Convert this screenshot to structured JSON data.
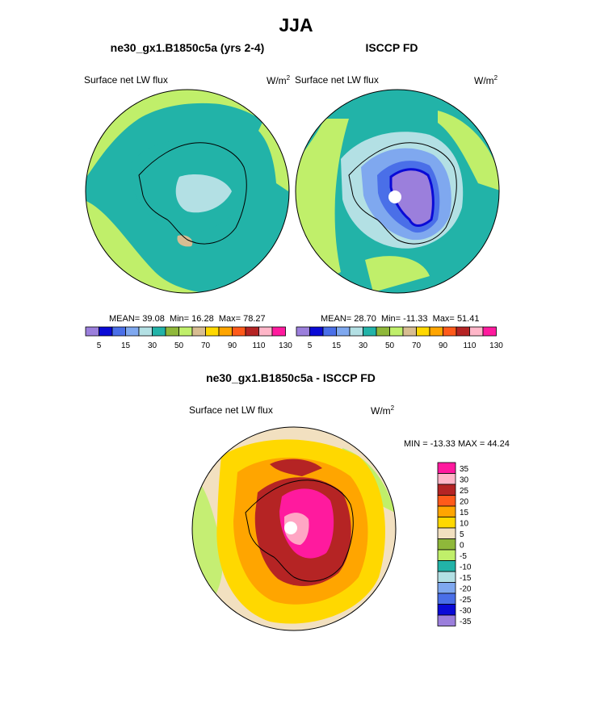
{
  "figure": {
    "title": "JJA"
  },
  "colors": {
    "levels_main": [
      "#9b7fdc",
      "#0a0ad6",
      "#4a6fe8",
      "#7fa8ef",
      "#b3e0e4",
      "#22b3a8",
      "#8fb83a",
      "#c0ef6a",
      "#d8bd92",
      "#ffd800",
      "#ffa500",
      "#ff5a1a",
      "#b52424",
      "#ffb6c8",
      "#ff1a9e"
    ],
    "levels_diff": [
      "#ff1a9e",
      "#ffb6c8",
      "#b52424",
      "#ff5a1a",
      "#ffa500",
      "#ffd800",
      "#f2e0c0",
      "#8fb83a",
      "#c0ef6a",
      "#22b3a8",
      "#b3e0e4",
      "#7fa8ef",
      "#4a6fe8",
      "#0a0ad6",
      "#9b7fdc"
    ]
  },
  "chart_data": [
    {
      "type": "heatmap",
      "title": "ne30_gx1.B1850c5a (yrs 2-4)",
      "left_label": "Surface net LW flux",
      "right_label": "W/m",
      "units_sup": "2",
      "stats": {
        "mean_label": "MEAN=",
        "mean": "39.08",
        "min_label": "Min=",
        "min": "16.28",
        "max_label": "Max=",
        "max": "78.27"
      },
      "colorbar": {
        "orientation": "horizontal",
        "tick_labels": [
          "5",
          "15",
          "30",
          "50",
          "70",
          "90",
          "110",
          "130"
        ]
      }
    },
    {
      "type": "heatmap",
      "title": "ISCCP FD",
      "left_label": "Surface net LW flux",
      "right_label": "W/m",
      "units_sup": "2",
      "stats": {
        "mean_label": "MEAN=",
        "mean": "28.70",
        "min_label": "Min=",
        "min": "-11.33",
        "max_label": "Max=",
        "max": "51.41"
      },
      "colorbar": {
        "orientation": "horizontal",
        "tick_labels": [
          "5",
          "15",
          "30",
          "50",
          "70",
          "90",
          "110",
          "130"
        ]
      }
    },
    {
      "type": "heatmap",
      "title": "ne30_gx1.B1850c5a - ISCCP FD",
      "left_label": "Surface net LW flux",
      "right_label": "W/m",
      "units_sup": "2",
      "minmax": "MIN = -13.33 MAX =  44.24",
      "colorbar": {
        "orientation": "vertical",
        "tick_labels": [
          "35",
          "30",
          "25",
          "20",
          "15",
          "10",
          "5",
          "0",
          "-5",
          "-10",
          "-15",
          "-20",
          "-25",
          "-30",
          "-35"
        ]
      }
    }
  ]
}
